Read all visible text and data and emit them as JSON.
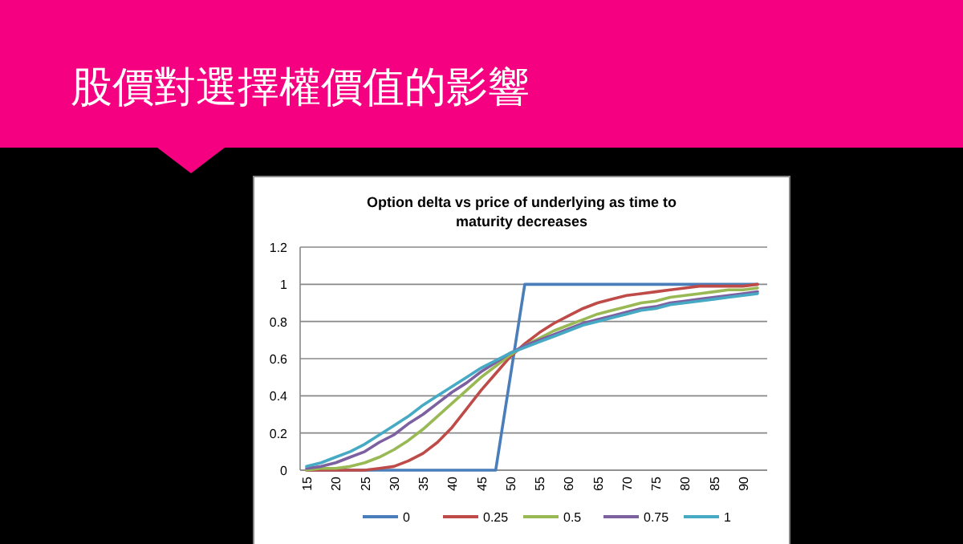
{
  "chart_data": {
    "type": "line",
    "title": "股價對選擇權價值的影響",
    "subtitle": "Option delta vs price of underlying as time to maturity decreases",
    "categories": [
      "15",
      null,
      "20",
      null,
      "25",
      null,
      "30",
      null,
      "35",
      null,
      "40",
      null,
      "45",
      null,
      "50",
      null,
      "55",
      null,
      "60",
      null,
      "65",
      null,
      "70",
      null,
      "75",
      null,
      "80",
      null,
      "85",
      null,
      "90",
      null
    ],
    "series": [
      {
        "name": "0",
        "color": "#4a7ebb",
        "values": [
          0,
          0,
          0,
          0,
          0,
          0,
          0,
          0,
          0,
          0,
          0,
          0,
          0,
          0,
          0.5,
          1,
          1,
          1,
          1,
          1,
          1,
          1,
          1,
          1,
          1,
          1,
          1,
          1,
          1,
          1,
          1,
          1
        ]
      },
      {
        "name": "0.25",
        "color": "#be4b48",
        "values": [
          0,
          0,
          0,
          0,
          0,
          0.01,
          0.02,
          0.05,
          0.09,
          0.15,
          0.23,
          0.33,
          0.43,
          0.52,
          0.61,
          0.68,
          0.74,
          0.79,
          0.83,
          0.87,
          0.9,
          0.92,
          0.94,
          0.95,
          0.96,
          0.97,
          0.98,
          0.99,
          0.99,
          0.99,
          0.99,
          1
        ]
      },
      {
        "name": "0.5",
        "color": "#98b954",
        "values": [
          0,
          0.01,
          0.01,
          0.02,
          0.04,
          0.07,
          0.11,
          0.16,
          0.22,
          0.29,
          0.36,
          0.43,
          0.5,
          0.56,
          0.62,
          0.67,
          0.71,
          0.75,
          0.78,
          0.81,
          0.84,
          0.86,
          0.88,
          0.9,
          0.91,
          0.93,
          0.94,
          0.95,
          0.96,
          0.97,
          0.97,
          0.98
        ]
      },
      {
        "name": "0.75",
        "color": "#7d60a0",
        "values": [
          0.01,
          0.02,
          0.04,
          0.07,
          0.1,
          0.15,
          0.19,
          0.25,
          0.3,
          0.36,
          0.42,
          0.47,
          0.53,
          0.58,
          0.63,
          0.67,
          0.7,
          0.73,
          0.76,
          0.79,
          0.81,
          0.83,
          0.85,
          0.87,
          0.88,
          0.9,
          0.91,
          0.92,
          0.93,
          0.94,
          0.95,
          0.96
        ]
      },
      {
        "name": "1",
        "color": "#46aac5",
        "values": [
          0.02,
          0.04,
          0.07,
          0.1,
          0.14,
          0.19,
          0.24,
          0.29,
          0.35,
          0.4,
          0.45,
          0.5,
          0.55,
          0.59,
          0.63,
          0.66,
          0.69,
          0.72,
          0.75,
          0.78,
          0.8,
          0.82,
          0.84,
          0.86,
          0.87,
          0.89,
          0.9,
          0.91,
          0.92,
          0.93,
          0.94,
          0.95
        ]
      }
    ],
    "ylim": [
      0,
      1.2
    ],
    "yticks": [
      0,
      0.2,
      0.4,
      0.6,
      0.8,
      1,
      1.2
    ],
    "grid": "y",
    "legend": "bottom",
    "marker": "none",
    "line_style": "solid"
  }
}
